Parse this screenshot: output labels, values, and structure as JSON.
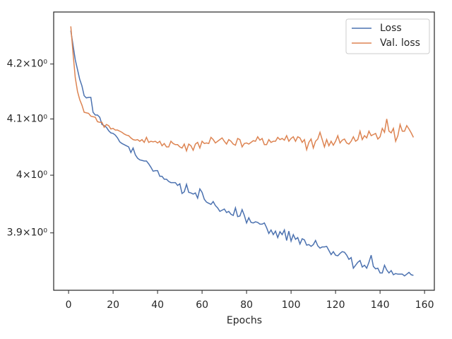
{
  "chart_data": {
    "type": "line",
    "xlabel": "Epochs",
    "yscale": "log",
    "grid": false,
    "legend": "upper right",
    "x": [
      1,
      2,
      3,
      4,
      5,
      6,
      7,
      8,
      9,
      10,
      11,
      12,
      13,
      14,
      15,
      16,
      17,
      18,
      19,
      20,
      21,
      22,
      23,
      24,
      25,
      26,
      27,
      28,
      29,
      30,
      31,
      32,
      33,
      34,
      35,
      36,
      37,
      38,
      39,
      40,
      41,
      42,
      43,
      44,
      45,
      46,
      47,
      48,
      49,
      50,
      51,
      52,
      53,
      54,
      55,
      56,
      57,
      58,
      59,
      60,
      61,
      62,
      63,
      64,
      65,
      66,
      67,
      68,
      69,
      70,
      71,
      72,
      73,
      74,
      75,
      76,
      77,
      78,
      79,
      80,
      81,
      82,
      83,
      84,
      85,
      86,
      87,
      88,
      89,
      90,
      91,
      92,
      93,
      94,
      95,
      96,
      97,
      98,
      99,
      100,
      101,
      102,
      103,
      104,
      105,
      106,
      107,
      108,
      109,
      110,
      111,
      112,
      113,
      114,
      115,
      116,
      117,
      118,
      119,
      120,
      121,
      122,
      123,
      124,
      125,
      126,
      127,
      128,
      129,
      130,
      131,
      132,
      133,
      134,
      135,
      136,
      137,
      138,
      139,
      140,
      141,
      142,
      143,
      144,
      145,
      146,
      147,
      148,
      149,
      150,
      151,
      152,
      153,
      154,
      155
    ],
    "series": [
      {
        "name": "Loss",
        "color": "#4c72b0",
        "values": [
          4.262,
          4.235,
          4.208,
          4.19,
          4.172,
          4.16,
          4.142,
          4.138,
          4.139,
          4.139,
          4.112,
          4.107,
          4.107,
          4.103,
          4.09,
          4.088,
          4.085,
          4.079,
          4.075,
          4.074,
          4.071,
          4.066,
          4.059,
          4.056,
          4.054,
          4.052,
          4.05,
          4.04,
          4.048,
          4.036,
          4.03,
          4.027,
          4.026,
          4.025,
          4.025,
          4.02,
          4.014,
          4.007,
          4.008,
          4.008,
          3.998,
          3.998,
          3.993,
          3.993,
          3.989,
          3.987,
          3.987,
          3.987,
          3.982,
          3.985,
          3.968,
          3.971,
          3.984,
          3.97,
          3.969,
          3.967,
          3.969,
          3.96,
          3.976,
          3.97,
          3.958,
          3.953,
          3.951,
          3.949,
          3.954,
          3.947,
          3.943,
          3.937,
          3.939,
          3.941,
          3.935,
          3.937,
          3.932,
          3.93,
          3.943,
          3.928,
          3.929,
          3.94,
          3.93,
          3.917,
          3.926,
          3.918,
          3.917,
          3.919,
          3.918,
          3.915,
          3.915,
          3.917,
          3.909,
          3.899,
          3.905,
          3.897,
          3.903,
          3.892,
          3.902,
          3.897,
          3.905,
          3.887,
          3.903,
          3.886,
          3.897,
          3.889,
          3.892,
          3.881,
          3.89,
          3.888,
          3.879,
          3.88,
          3.877,
          3.88,
          3.887,
          3.878,
          3.874,
          3.876,
          3.876,
          3.877,
          3.87,
          3.863,
          3.868,
          3.862,
          3.861,
          3.865,
          3.868,
          3.867,
          3.862,
          3.855,
          3.858,
          3.84,
          3.845,
          3.85,
          3.853,
          3.842,
          3.845,
          3.84,
          3.85,
          3.862,
          3.843,
          3.839,
          3.84,
          3.832,
          3.832,
          3.845,
          3.837,
          3.832,
          3.836,
          3.829,
          3.831,
          3.83,
          3.83,
          3.83,
          3.827,
          3.83,
          3.833,
          3.829,
          3.828
        ]
      },
      {
        "name": "Val. loss",
        "color": "#dd8452",
        "values": [
          4.27,
          4.22,
          4.175,
          4.15,
          4.135,
          4.125,
          4.112,
          4.111,
          4.11,
          4.105,
          4.104,
          4.103,
          4.095,
          4.094,
          4.094,
          4.085,
          4.09,
          4.088,
          4.082,
          4.083,
          4.08,
          4.08,
          4.078,
          4.076,
          4.073,
          4.071,
          4.07,
          4.066,
          4.063,
          4.062,
          4.063,
          4.06,
          4.063,
          4.058,
          4.067,
          4.058,
          4.06,
          4.059,
          4.06,
          4.057,
          4.06,
          4.052,
          4.056,
          4.05,
          4.05,
          4.06,
          4.056,
          4.054,
          4.054,
          4.05,
          4.048,
          4.055,
          4.043,
          4.055,
          4.052,
          4.044,
          4.055,
          4.058,
          4.048,
          4.06,
          4.056,
          4.057,
          4.056,
          4.067,
          4.063,
          4.057,
          4.06,
          4.063,
          4.066,
          4.06,
          4.055,
          4.063,
          4.06,
          4.055,
          4.053,
          4.065,
          4.063,
          4.05,
          4.056,
          4.057,
          4.055,
          4.058,
          4.061,
          4.06,
          4.068,
          4.062,
          4.065,
          4.054,
          4.054,
          4.063,
          4.058,
          4.06,
          4.06,
          4.067,
          4.063,
          4.065,
          4.062,
          4.07,
          4.06,
          4.065,
          4.068,
          4.06,
          4.068,
          4.066,
          4.058,
          4.063,
          4.045,
          4.058,
          4.064,
          4.048,
          4.06,
          4.064,
          4.076,
          4.063,
          4.05,
          4.063,
          4.052,
          4.06,
          4.053,
          4.06,
          4.07,
          4.057,
          4.062,
          4.064,
          4.057,
          4.055,
          4.06,
          4.068,
          4.06,
          4.063,
          4.078,
          4.063,
          4.07,
          4.066,
          4.078,
          4.07,
          4.072,
          4.074,
          4.064,
          4.068,
          4.083,
          4.076,
          4.1,
          4.078,
          4.075,
          4.083,
          4.06,
          4.07,
          4.09,
          4.078,
          4.078,
          4.088,
          4.082,
          4.075,
          4.067
        ]
      }
    ],
    "xlim": [
      -6.7,
      164.4
    ],
    "xticks": [
      0,
      20,
      40,
      60,
      80,
      100,
      120,
      140,
      160
    ],
    "ylim": [
      3.803,
      4.297
    ],
    "yticks": [
      {
        "value": 3.9,
        "label": "3.9×10⁰"
      },
      {
        "value": 4.0,
        "label": "4×10⁰"
      },
      {
        "value": 4.1,
        "label": "4.1×10⁰"
      },
      {
        "value": 4.2,
        "label": "4.2×10⁰"
      }
    ]
  }
}
